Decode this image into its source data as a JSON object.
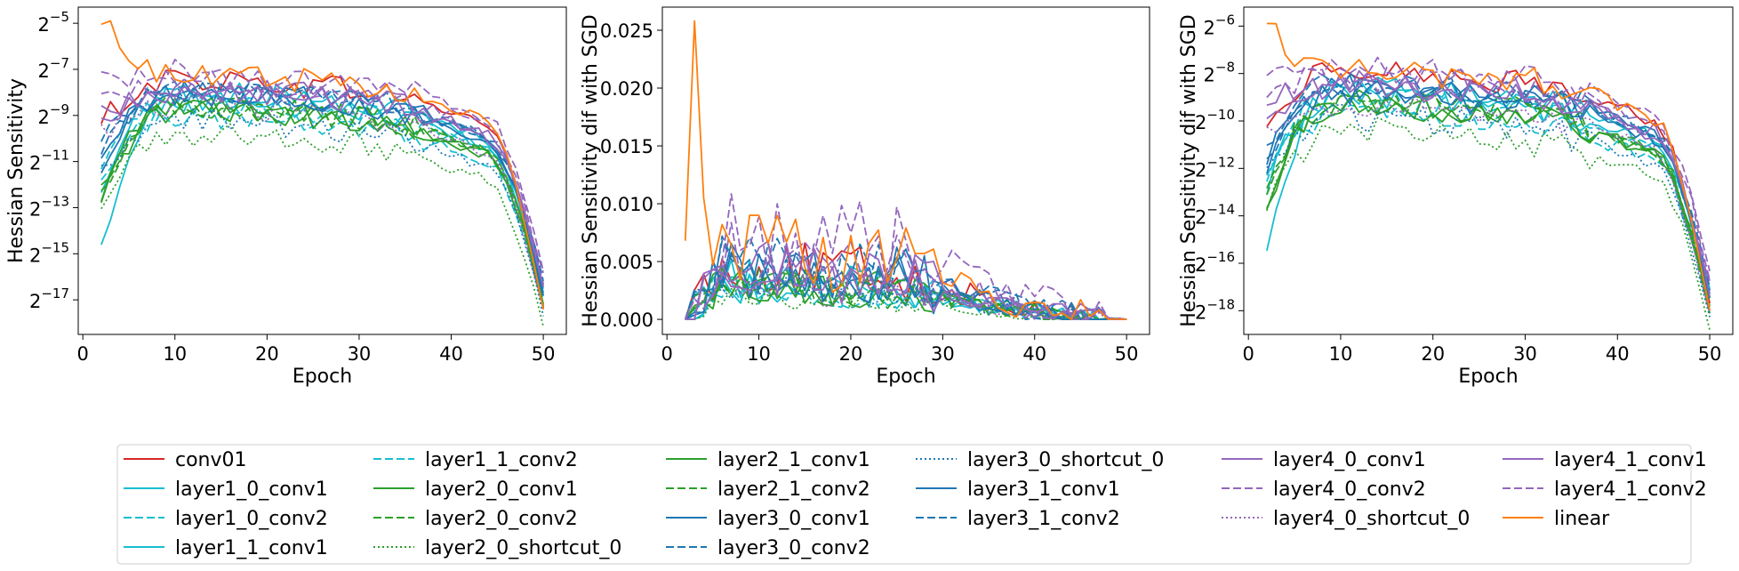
{
  "chart_data": [
    {
      "type": "line",
      "xlabel": "Epoch",
      "ylabel": "Hessian Sensitivity",
      "yscale": "log2",
      "ylim_exp": [
        -18.5,
        -4.3
      ],
      "xlim": [
        -0.5,
        52.5
      ],
      "xticks": [
        0,
        10,
        20,
        30,
        40,
        50
      ],
      "yticks": [
        {
          "exp": -5,
          "label": "2^-5"
        },
        {
          "exp": -7,
          "label": "2^-7"
        },
        {
          "exp": -9,
          "label": "2^-9"
        },
        {
          "exp": -11,
          "label": "2^-11"
        },
        {
          "exp": -13,
          "label": "2^-13"
        },
        {
          "exp": -15,
          "label": "2^-15"
        },
        {
          "exp": -17,
          "label": "2^-17"
        }
      ],
      "grid": false,
      "series_start_exp": {
        "conv01": -9.5,
        "layer1_0_conv1": -12.5,
        "layer1_0_conv2": -11.5,
        "layer1_1_conv1": -14.8,
        "layer1_1_conv2": -12,
        "layer2_0_conv1": -13,
        "layer2_0_conv2": -12.5,
        "layer2_0_shortcut_0": -13.3,
        "layer2_1_conv1": -13,
        "layer2_1_conv2": -12.3,
        "layer3_0_conv1": -11.8,
        "layer3_0_conv2": -11,
        "layer3_0_shortcut_0": -11.5,
        "layer3_1_conv1": -11.2,
        "layer3_1_conv2": -10.5,
        "layer4_0_conv1": -9.5,
        "layer4_0_conv2": -7.5,
        "layer4_0_shortcut_0": -9.8,
        "layer4_1_conv1": -9,
        "layer4_1_conv2": -8.5,
        "linear": -5.5
      },
      "series_peak_exp": {
        "conv01": -7.4,
        "layer1_0_conv1": -8.0,
        "layer1_0_conv2": -8.5,
        "layer1_1_conv1": -8.3,
        "layer1_1_conv2": -9.0,
        "layer2_0_conv1": -8.7,
        "layer2_0_conv2": -8.6,
        "layer2_0_shortcut_0": -9.8,
        "layer2_1_conv1": -8.7,
        "layer2_1_conv2": -8.6,
        "layer3_0_conv1": -8.0,
        "layer3_0_conv2": -7.9,
        "layer3_0_shortcut_0": -9.2,
        "layer3_1_conv1": -8.1,
        "layer3_1_conv2": -7.9,
        "layer4_0_conv1": -7.8,
        "layer4_0_conv2": -7.1,
        "layer4_0_shortcut_0": -8.6,
        "layer4_1_conv1": -7.9,
        "layer4_1_conv2": -7.5,
        "linear": -7.2
      },
      "series_end_exp": {
        "conv01": -17.3,
        "layer1_0_conv1": -16.5,
        "layer1_0_conv2": -17,
        "layer1_1_conv1": -16.8,
        "layer1_1_conv2": -17.2,
        "layer2_0_conv1": -17.2,
        "layer2_0_conv2": -17.4,
        "layer2_0_shortcut_0": -18.2,
        "layer2_1_conv1": -17.3,
        "layer2_1_conv2": -17.4,
        "layer3_0_conv1": -16.9,
        "layer3_0_conv2": -16.4,
        "layer3_0_shortcut_0": -17.8,
        "layer3_1_conv1": -16.8,
        "layer3_1_conv2": -16.3,
        "layer4_0_conv1": -16.5,
        "layer4_0_conv2": -15.9,
        "layer4_0_shortcut_0": -17.5,
        "layer4_1_conv1": -16.6,
        "layer4_1_conv2": -16,
        "linear": -17.6
      }
    },
    {
      "type": "line",
      "xlabel": "Epoch",
      "ylabel": "Hessian Sensitivity dif with SGD",
      "yscale": "linear",
      "ylim": [
        -0.0013,
        0.027
      ],
      "xlim": [
        -0.5,
        52.5
      ],
      "xticks": [
        0,
        10,
        20,
        30,
        40,
        50
      ],
      "yticks": [
        {
          "value": 0.0,
          "label": "0.000"
        },
        {
          "value": 0.005,
          "label": "0.005"
        },
        {
          "value": 0.01,
          "label": "0.010"
        },
        {
          "value": 0.015,
          "label": "0.015"
        },
        {
          "value": 0.02,
          "label": "0.020"
        },
        {
          "value": 0.025,
          "label": "0.025"
        }
      ],
      "grid": false,
      "series_peak": {
        "conv01": 0.0045,
        "layer1_0_conv1": 0.0035,
        "layer1_0_conv2": 0.003,
        "layer1_1_conv1": 0.0032,
        "layer1_1_conv2": 0.0025,
        "layer2_0_conv1": 0.003,
        "layer2_0_conv2": 0.0028,
        "layer2_0_shortcut_0": 0.0018,
        "layer2_1_conv1": 0.003,
        "layer2_1_conv2": 0.003,
        "layer3_0_conv1": 0.0045,
        "layer3_0_conv2": 0.005,
        "layer3_0_shortcut_0": 0.0025,
        "layer3_1_conv1": 0.004,
        "layer3_1_conv2": 0.0048,
        "layer4_0_conv1": 0.0045,
        "layer4_0_conv2": 0.0075,
        "layer4_0_shortcut_0": 0.003,
        "layer4_1_conv1": 0.004,
        "layer4_1_conv2": 0.0058,
        "linear": 0.006
      },
      "linear_spike": {
        "epoch": 3,
        "value": 0.0258
      }
    },
    {
      "type": "line",
      "xlabel": "Epoch",
      "ylabel": "Hessian Sensitivity dif with SGD",
      "yscale": "log2",
      "ylim_exp": [
        -19.0,
        -5.2
      ],
      "xlim": [
        -0.5,
        52.5
      ],
      "xticks": [
        0,
        10,
        20,
        30,
        40,
        50
      ],
      "yticks": [
        {
          "exp": -6,
          "label": "2^-6"
        },
        {
          "exp": -8,
          "label": "2^-8"
        },
        {
          "exp": -10,
          "label": "2^-10"
        },
        {
          "exp": -12,
          "label": "2^-12"
        },
        {
          "exp": -14,
          "label": "2^-14"
        },
        {
          "exp": -16,
          "label": "2^-16"
        },
        {
          "exp": -18,
          "label": "2^-18"
        }
      ],
      "grid": false
    }
  ],
  "legend": {
    "placement": "bottom",
    "columns": 6,
    "entries": [
      {
        "name": "conv01",
        "color": "#d62728",
        "dash": "solid"
      },
      {
        "name": "layer1_0_conv1",
        "color": "#17becf",
        "dash": "solid"
      },
      {
        "name": "layer1_0_conv2",
        "color": "#17becf",
        "dash": "dashed"
      },
      {
        "name": "layer1_1_conv1",
        "color": "#17becf",
        "dash": "solid"
      },
      {
        "name": "layer1_1_conv2",
        "color": "#17becf",
        "dash": "dashed"
      },
      {
        "name": "layer2_0_conv1",
        "color": "#2ca02c",
        "dash": "solid"
      },
      {
        "name": "layer2_0_conv2",
        "color": "#2ca02c",
        "dash": "dashed"
      },
      {
        "name": "layer2_0_shortcut_0",
        "color": "#2ca02c",
        "dash": "dotted"
      },
      {
        "name": "layer2_1_conv1",
        "color": "#2ca02c",
        "dash": "solid"
      },
      {
        "name": "layer2_1_conv2",
        "color": "#2ca02c",
        "dash": "dashed"
      },
      {
        "name": "layer3_0_conv1",
        "color": "#1f77b4",
        "dash": "solid"
      },
      {
        "name": "layer3_0_conv2",
        "color": "#1f77b4",
        "dash": "dashed"
      },
      {
        "name": "layer3_0_shortcut_0",
        "color": "#1f77b4",
        "dash": "dotted"
      },
      {
        "name": "layer3_1_conv1",
        "color": "#1f77b4",
        "dash": "solid"
      },
      {
        "name": "layer3_1_conv2",
        "color": "#1f77b4",
        "dash": "dashed"
      },
      {
        "name": "layer4_0_conv1",
        "color": "#9467bd",
        "dash": "solid"
      },
      {
        "name": "layer4_0_conv2",
        "color": "#9467bd",
        "dash": "dashed"
      },
      {
        "name": "layer4_0_shortcut_0",
        "color": "#9467bd",
        "dash": "dotted"
      },
      {
        "name": "layer4_1_conv1",
        "color": "#9467bd",
        "dash": "solid"
      },
      {
        "name": "layer4_1_conv2",
        "color": "#9467bd",
        "dash": "dashed"
      },
      {
        "name": "linear",
        "color": "#ff7f0e",
        "dash": "solid"
      }
    ]
  }
}
